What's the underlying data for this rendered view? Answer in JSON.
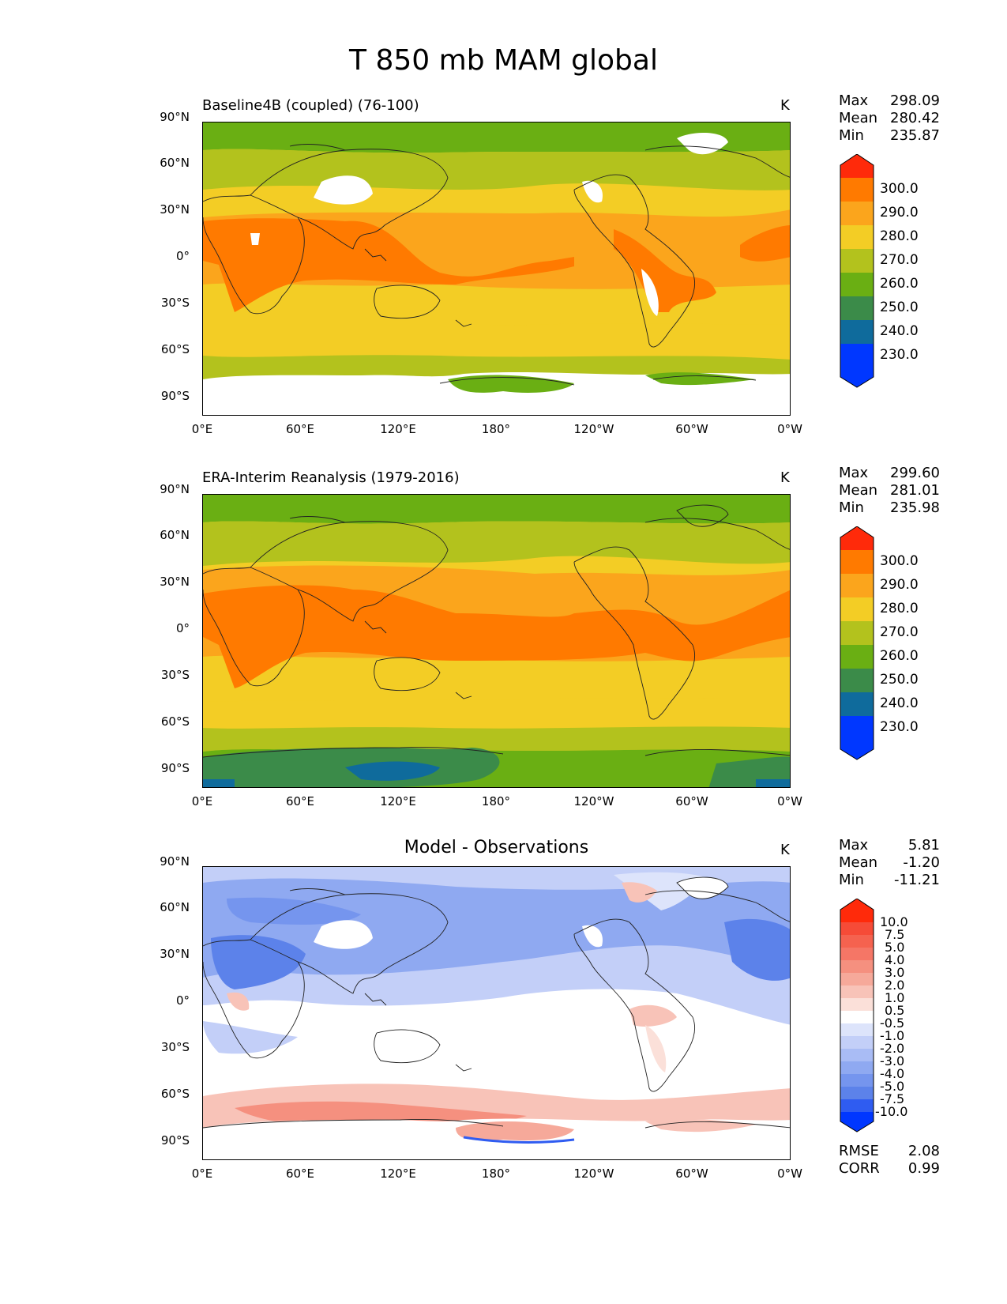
{
  "figure": {
    "title": "T 850 mb MAM global"
  },
  "axes": {
    "lat_ticks": [
      "90°N",
      "60°N",
      "30°N",
      "0°",
      "30°S",
      "60°S",
      "90°S"
    ],
    "lon_ticks": [
      "0°E",
      "60°E",
      "120°E",
      "180°",
      "120°W",
      "60°W",
      "0°W"
    ]
  },
  "panels": [
    {
      "title": "Baseline4B (coupled) (76-100)",
      "units": "K",
      "stats": {
        "max_label": "Max",
        "max": "298.09",
        "mean_label": "Mean",
        "mean": "280.42",
        "min_label": "Min",
        "min": "235.87"
      },
      "colorbar": {
        "levels": [
          "300.0",
          "290.0",
          "280.0",
          "270.0",
          "260.0",
          "250.0",
          "240.0",
          "230.0"
        ],
        "colors": [
          "#ff2a0a",
          "#ff7a00",
          "#fba51c",
          "#f3cd25",
          "#b3c21d",
          "#6aaf13",
          "#3b8b49",
          "#0f6b9c",
          "#0037ff"
        ]
      }
    },
    {
      "title": "ERA-Interim Reanalysis (1979-2016)",
      "units": "K",
      "stats": {
        "max_label": "Max",
        "max": "299.60",
        "mean_label": "Mean",
        "mean": "281.01",
        "min_label": "Min",
        "min": "235.98"
      },
      "colorbar": {
        "levels": [
          "300.0",
          "290.0",
          "280.0",
          "270.0",
          "260.0",
          "250.0",
          "240.0",
          "230.0"
        ],
        "colors": [
          "#ff2a0a",
          "#ff7a00",
          "#fba51c",
          "#f3cd25",
          "#b3c21d",
          "#6aaf13",
          "#3b8b49",
          "#0f6b9c",
          "#0037ff"
        ]
      }
    },
    {
      "title": "Model - Observations",
      "units": "K",
      "stats": {
        "max_label": "Max",
        "max": "5.81",
        "mean_label": "Mean",
        "mean": "-1.20",
        "min_label": "Min",
        "min": "-11.21"
      },
      "colorbar": {
        "levels": [
          "10.0",
          "7.5",
          "5.0",
          "4.0",
          "3.0",
          "2.0",
          "1.0",
          "0.5",
          "-0.5",
          "-1.0",
          "-2.0",
          "-3.0",
          "-4.0",
          "-5.0",
          "-7.5",
          "-10.0"
        ],
        "colors": [
          "#ff2a0a",
          "#f64b37",
          "#f5624f",
          "#f57666",
          "#f5907f",
          "#f6a99a",
          "#f8c3b8",
          "#fbe0d9",
          "#ffffff",
          "#dde4fb",
          "#c3cff8",
          "#a9bcf5",
          "#8fa9f1",
          "#7595ee",
          "#5c82ea",
          "#2f5cf1",
          "#0037ff"
        ]
      },
      "extra": {
        "rmse_label": "RMSE",
        "rmse": "2.08",
        "corr_label": "CORR",
        "corr": "0.99"
      }
    }
  ]
}
